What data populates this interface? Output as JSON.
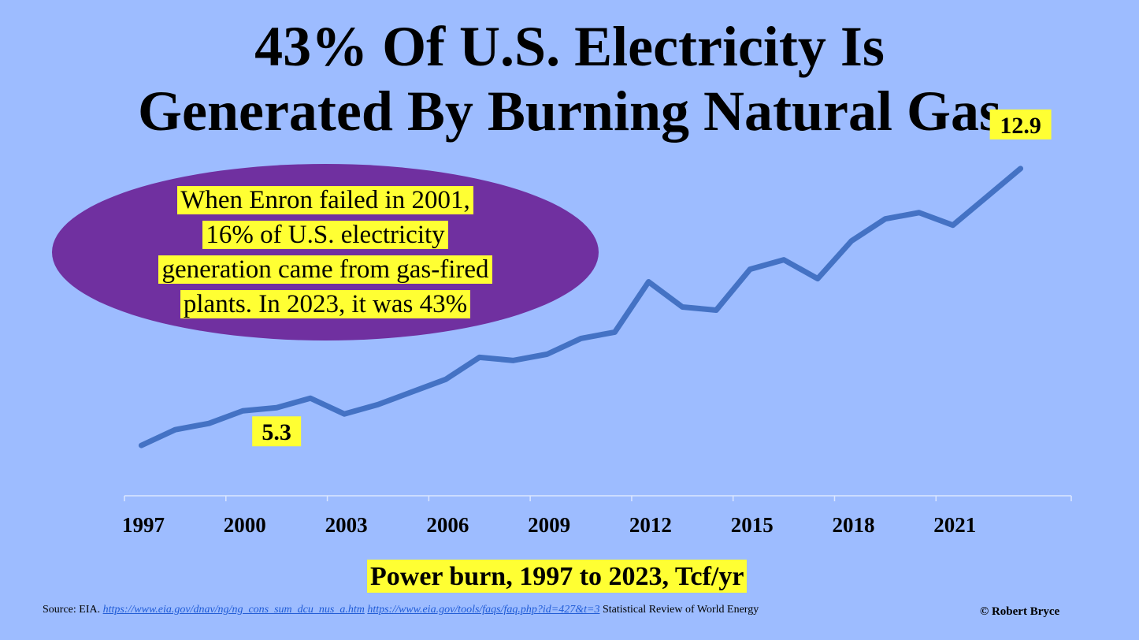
{
  "title": {
    "line1": "43% Of U.S. Electricity Is",
    "line2": "Generated By Burning Natural Gas"
  },
  "callout": {
    "lines": [
      "When Enron failed in 2001,",
      "16% of U.S. electricity",
      "generation came from gas-fired",
      "plants. In 2023, it was 43%"
    ],
    "color": "#7030a0"
  },
  "chart_data": {
    "type": "line",
    "xlabel": "Power burn, 1997 to 2023, Tcf/yr",
    "ylabel": "",
    "ylim": [
      2.5,
      14.5
    ],
    "grid": false,
    "tick_labels": [
      "1997",
      "2000",
      "2003",
      "2006",
      "2009",
      "2012",
      "2015",
      "2018",
      "2021"
    ],
    "x": [
      1997,
      1998,
      1999,
      2000,
      2001,
      2002,
      2003,
      2004,
      2005,
      2006,
      2007,
      2008,
      2009,
      2010,
      2011,
      2012,
      2013,
      2014,
      2015,
      2016,
      2017,
      2018,
      2019,
      2020,
      2021,
      2022,
      2023
    ],
    "series": [
      {
        "color": "#4472c4",
        "values": [
          4.1,
          4.6,
          4.8,
          5.2,
          5.3,
          5.6,
          5.1,
          5.4,
          5.8,
          6.2,
          6.9,
          6.8,
          7.0,
          7.5,
          7.7,
          9.3,
          8.5,
          8.4,
          9.7,
          10.0,
          9.4,
          10.6,
          11.3,
          11.5,
          11.1,
          12.0,
          12.9
        ]
      }
    ],
    "data_labels": [
      {
        "text": "5.3",
        "x": 2001,
        "value": 5.3
      },
      {
        "text": "12.9",
        "x": 2023,
        "value": 12.9
      }
    ]
  },
  "footer": {
    "source_prefix": "Source: EIA.",
    "link1": "https://www.eia.gov/dnav/ng/ng_cons_sum_dcu_nus_a.htm",
    "link2": "https://www.eia.gov/tools/faqs/faq.php?id=427&t=3",
    "source_suffix": "Statistical  Review of World Energy",
    "copyright": "© Robert Bryce"
  },
  "colors": {
    "background": "#9dbcff",
    "highlight": "#ffff33"
  }
}
